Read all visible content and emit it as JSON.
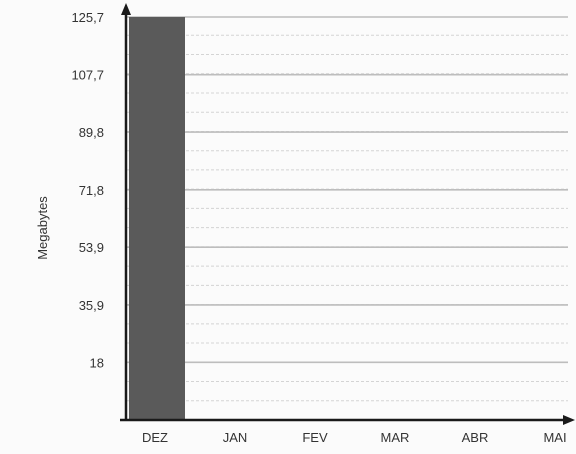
{
  "chart_data": {
    "type": "bar",
    "ylabel": "Megabytes",
    "xlabel": "",
    "categories": [
      "DEZ",
      "JAN",
      "FEV",
      "MAR",
      "ABR",
      "MAI"
    ],
    "values": [
      125.7,
      null,
      null,
      null,
      null,
      null
    ],
    "y_ticks": [
      "125,7",
      "107,7",
      "89,8",
      "71,8",
      "53,9",
      "35,9",
      "18"
    ],
    "y_tick_values": [
      125.7,
      107.7,
      89.8,
      71.8,
      53.9,
      35.9,
      18
    ],
    "ylim": [
      0,
      125.7
    ],
    "grid": true,
    "colors": {
      "bar": "#5a5a5a",
      "axis": "#1a1a1a",
      "grid_major": "#bdbdbd",
      "grid_minor": "#d4d4d4",
      "text": "#333333"
    }
  }
}
